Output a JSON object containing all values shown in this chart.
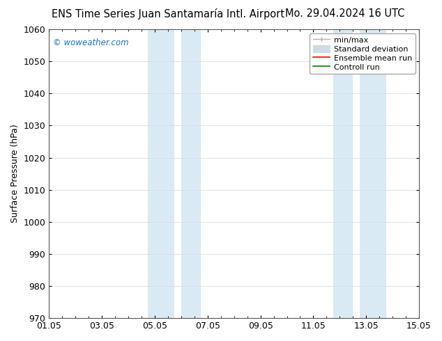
{
  "title": "ENS Time Series Juan Santamaría Intl. Airport      Mo. 29.04.2024 16 UTC",
  "title_left": "ENS Time Series Juan Santamaría Intl. Airport",
  "title_right": "Mo. 29.04.2024 16 UTC",
  "ylabel": "Surface Pressure (hPa)",
  "watermark": "© woweather.com",
  "watermark_color": "#1a6fc4",
  "xlim_start": 0.0,
  "xlim_end": 14.0,
  "ylim_bottom": 970,
  "ylim_top": 1060,
  "ytick_step": 10,
  "xtick_labels": [
    "01.05",
    "03.05",
    "05.05",
    "07.05",
    "09.05",
    "11.05",
    "13.05",
    "15.05"
  ],
  "xtick_positions": [
    0,
    2,
    4,
    6,
    8,
    10,
    12,
    14
  ],
  "shaded_bands": [
    {
      "x_start": 3.75,
      "x_end": 4.75
    },
    {
      "x_start": 5.0,
      "x_end": 5.75
    },
    {
      "x_start": 10.75,
      "x_end": 11.5
    },
    {
      "x_start": 11.75,
      "x_end": 12.75
    }
  ],
  "shade_color": "#daeaf5",
  "background_color": "#ffffff",
  "grid_color": "#d8d8d8",
  "title_fontsize": 10.5,
  "axis_label_fontsize": 9,
  "tick_fontsize": 9,
  "legend_fontsize": 8
}
